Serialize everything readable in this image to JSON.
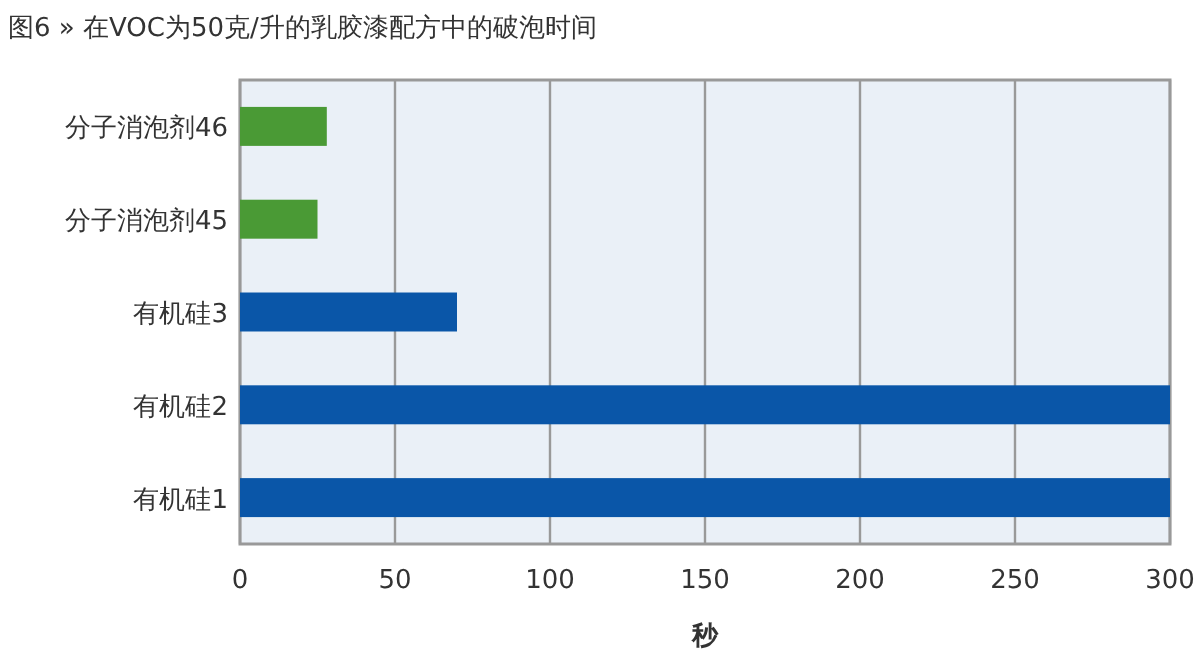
{
  "chart_data": {
    "type": "bar",
    "orientation": "horizontal",
    "title": "图6 » 在VOC为50克/升的乳胶漆配方中的破泡时间",
    "xlabel": "秒",
    "categories": [
      "分子消泡剂46",
      "分子消泡剂45",
      "有机硅3",
      "有机硅2",
      "有机硅1"
    ],
    "values": [
      28,
      25,
      70,
      300,
      300
    ],
    "colors": [
      "#4a9a35",
      "#4a9a35",
      "#0a56a8",
      "#0a56a8",
      "#0a56a8"
    ],
    "xlim": [
      0,
      300
    ],
    "xticks": [
      0,
      50,
      100,
      150,
      200,
      250,
      300
    ],
    "grid": "x"
  }
}
